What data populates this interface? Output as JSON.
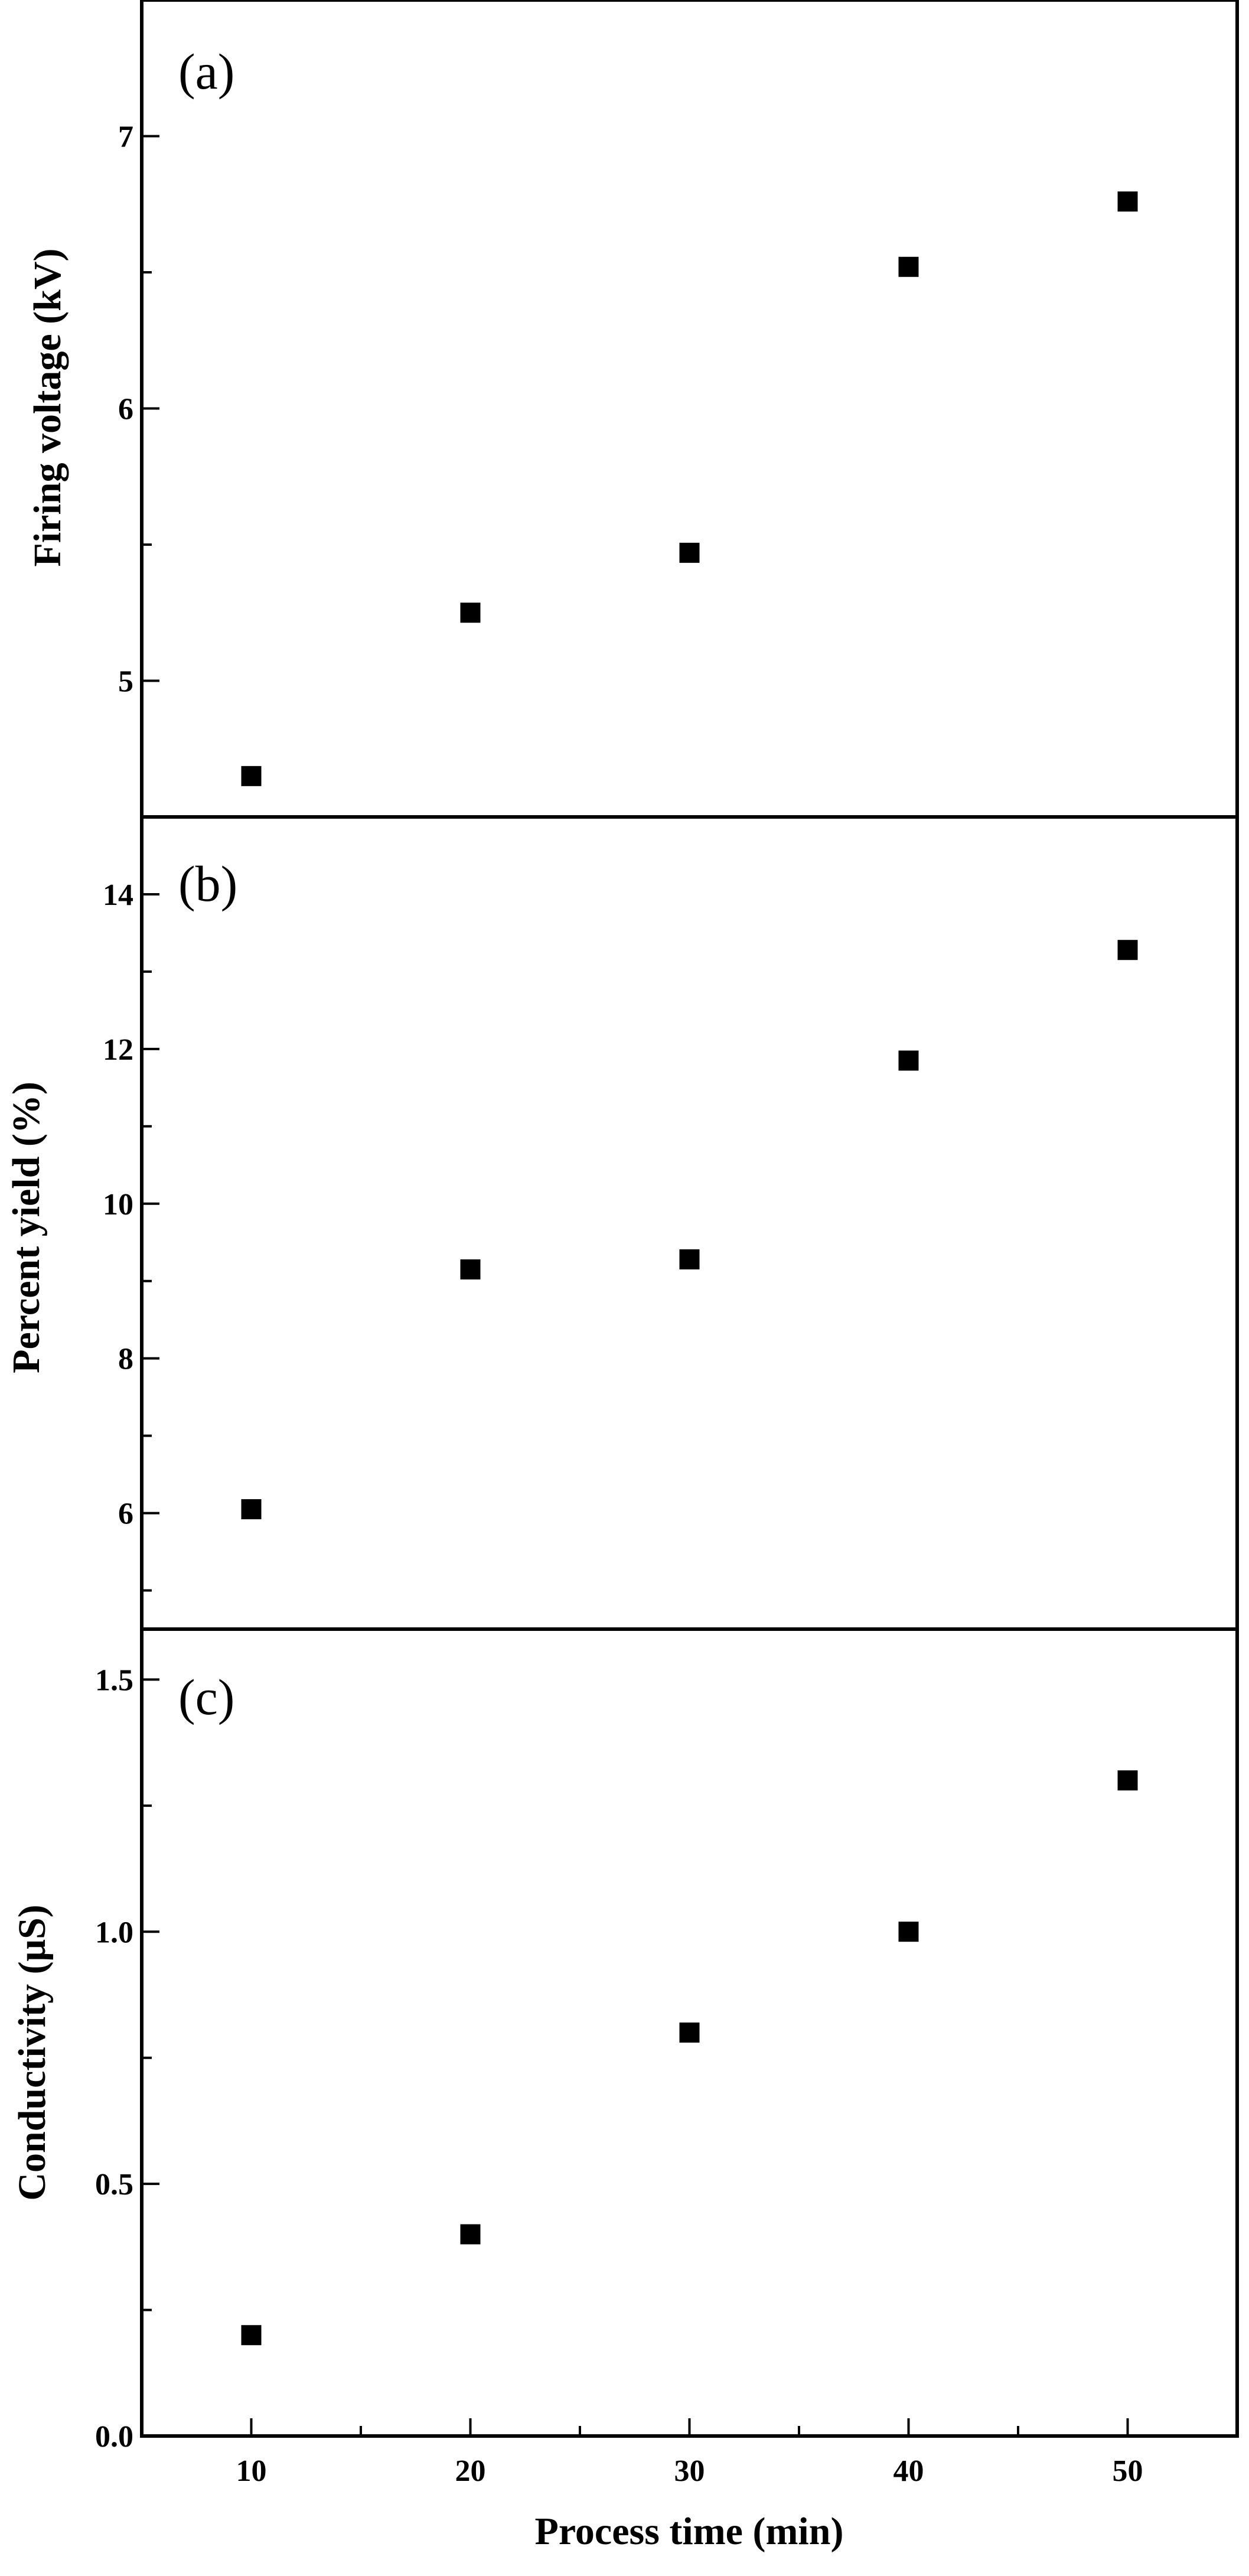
{
  "chart_data": [
    {
      "type": "scatter",
      "panel_label": "(a)",
      "xlabel": "",
      "ylabel": "Firing voltage (kV)",
      "xlim": [
        5,
        55
      ],
      "ylim": [
        4.5,
        7.5
      ],
      "xticks": [
        10,
        20,
        30,
        40,
        50
      ],
      "xtick_labels": [
        "10",
        "20",
        "30",
        "40",
        "50"
      ],
      "yticks": [
        5,
        6,
        7
      ],
      "ytick_labels": [
        "5",
        "6",
        "7"
      ],
      "series": [
        {
          "x": [
            10,
            20,
            30,
            40,
            50
          ],
          "values": [
            4.65,
            5.25,
            5.47,
            6.52,
            6.76
          ],
          "marker": "square",
          "color": "#000000"
        }
      ],
      "grid": false,
      "legend": false
    },
    {
      "type": "scatter",
      "panel_label": "(b)",
      "xlabel": "",
      "ylabel": "Percent yield (%)",
      "xlim": [
        5,
        55
      ],
      "ylim": [
        4.5,
        15
      ],
      "xticks": [
        10,
        20,
        30,
        40,
        50
      ],
      "xtick_labels": [
        "10",
        "20",
        "30",
        "40",
        "50"
      ],
      "yticks": [
        6,
        8,
        10,
        12,
        14
      ],
      "ytick_labels": [
        "6",
        "8",
        "10",
        "12",
        "14"
      ],
      "series": [
        {
          "x": [
            10,
            20,
            30,
            40,
            50
          ],
          "values": [
            6.05,
            9.15,
            9.28,
            11.85,
            13.28
          ],
          "marker": "square",
          "color": "#000000"
        }
      ],
      "grid": false,
      "legend": false
    },
    {
      "type": "scatter",
      "panel_label": "(c)",
      "xlabel": "Process time (min)",
      "ylabel": "Conductivity (μS)",
      "xlim": [
        5,
        55
      ],
      "ylim": [
        0.0,
        1.6
      ],
      "xticks": [
        10,
        20,
        30,
        40,
        50
      ],
      "xtick_labels": [
        "10",
        "20",
        "30",
        "40",
        "50"
      ],
      "yticks": [
        0.0,
        0.5,
        1.0,
        1.5
      ],
      "ytick_labels": [
        "0.0",
        "0.5",
        "1.0",
        "1.5"
      ],
      "series": [
        {
          "x": [
            10,
            20,
            30,
            40,
            50
          ],
          "values": [
            0.2,
            0.4,
            0.8,
            1.0,
            1.3
          ],
          "marker": "square",
          "color": "#000000"
        }
      ],
      "grid": false,
      "legend": false
    }
  ]
}
